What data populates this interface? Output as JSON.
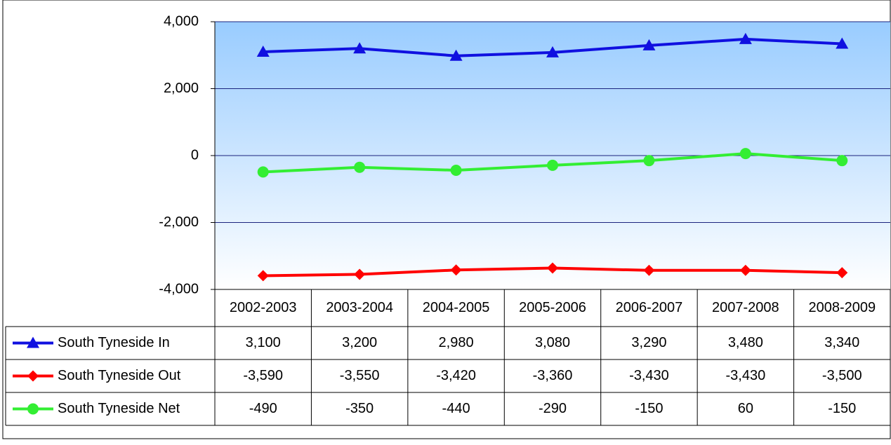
{
  "chart_data": {
    "type": "line",
    "categories": [
      "2002-2003",
      "2003-2004",
      "2004-2005",
      "2005-2006",
      "2006-2007",
      "2007-2008",
      "2008-2009"
    ],
    "series": [
      {
        "name": "South Tyneside In",
        "color": "#1010e0",
        "marker": "triangle",
        "values": [
          3100,
          3200,
          2980,
          3080,
          3290,
          3480,
          3340
        ],
        "value_labels": [
          "3,100",
          "3,200",
          "2,980",
          "3,080",
          "3,290",
          "3,480",
          "3,340"
        ]
      },
      {
        "name": "South Tyneside Out",
        "color": "#ff0000",
        "marker": "diamond",
        "values": [
          -3590,
          -3550,
          -3420,
          -3360,
          -3430,
          -3430,
          -3500
        ],
        "value_labels": [
          "-3,590",
          "-3,550",
          "-3,420",
          "-3,360",
          "-3,430",
          "-3,430",
          "-3,500"
        ]
      },
      {
        "name": "South Tyneside Net",
        "color": "#33ee33",
        "marker": "circle",
        "values": [
          -490,
          -350,
          -440,
          -290,
          -150,
          60,
          -150
        ],
        "value_labels": [
          "-490",
          "-350",
          "-440",
          "-290",
          "-150",
          "60",
          "-150"
        ]
      }
    ],
    "ylim": [
      -4000,
      4000
    ],
    "yticks": [
      {
        "value": -4000,
        "label": "-4,000"
      },
      {
        "value": -2000,
        "label": "-2,000"
      },
      0,
      {
        "value": 2000,
        "label": "2,000"
      },
      {
        "value": 4000,
        "label": "4,000"
      }
    ],
    "grid": true
  }
}
